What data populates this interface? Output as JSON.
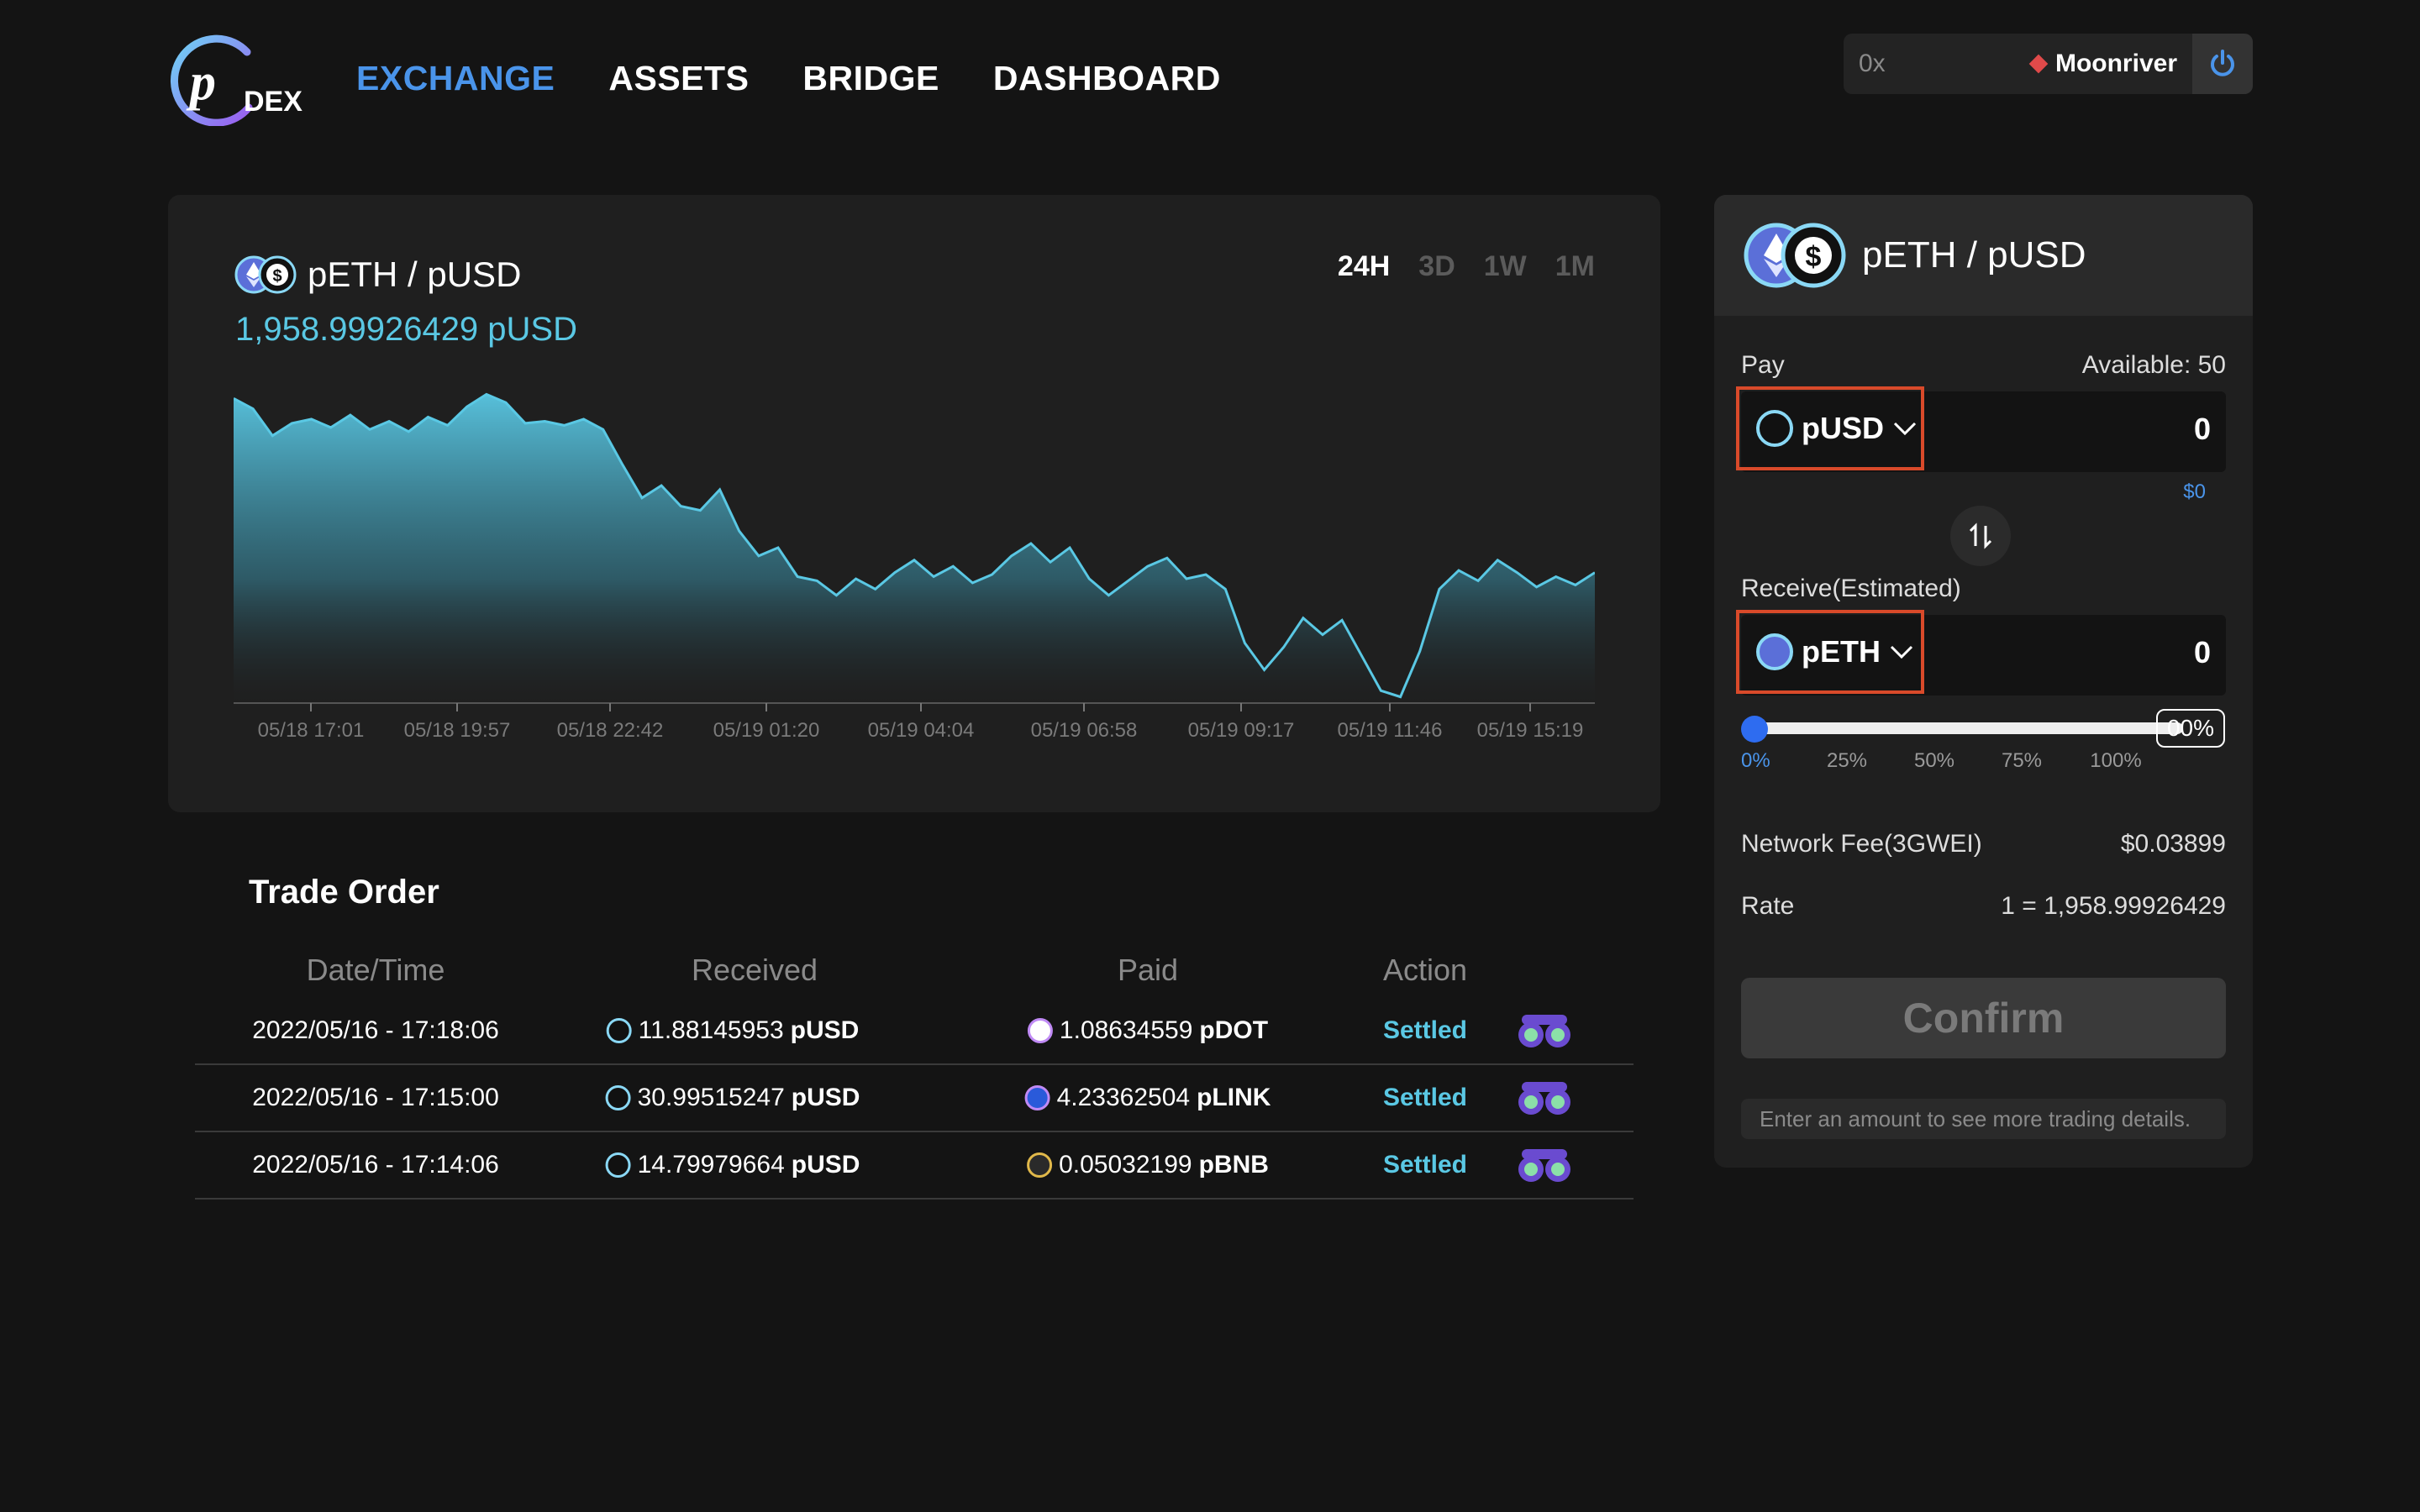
{
  "header": {
    "logo_text": "DEX",
    "nav": [
      "EXCHANGE",
      "ASSETS",
      "BRIDGE",
      "DASHBOARD"
    ],
    "active_nav": "EXCHANGE",
    "wallet": {
      "address_placeholder": "0x",
      "network": "Moonriver"
    }
  },
  "chart_card": {
    "pair": "pETH / pUSD",
    "price": "1,958.99926429 pUSD",
    "ranges": [
      "24H",
      "3D",
      "1W",
      "1M"
    ],
    "active_range": "24H"
  },
  "chart_data": {
    "type": "area",
    "x_tick_labels": [
      "05/18 17:01",
      "05/18 19:57",
      "05/18 22:42",
      "05/19 01:20",
      "05/19 04:04",
      "05/19 06:58",
      "05/19 09:17",
      "05/19 11:46",
      "05/19 15:19"
    ],
    "values": [
      1985.0,
      1984.5,
      1983.2,
      1983.8,
      1984.0,
      1983.6,
      1984.2,
      1983.5,
      1983.9,
      1983.4,
      1984.1,
      1983.7,
      1984.6,
      1985.2,
      1984.8,
      1983.8,
      1983.9,
      1983.7,
      1984.0,
      1983.5,
      1981.8,
      1980.2,
      1980.8,
      1979.8,
      1979.6,
      1980.6,
      1978.6,
      1977.4,
      1977.8,
      1976.4,
      1976.2,
      1975.5,
      1976.3,
      1975.8,
      1976.6,
      1977.2,
      1976.4,
      1976.9,
      1976.1,
      1976.5,
      1977.4,
      1978.0,
      1977.1,
      1977.8,
      1976.3,
      1975.5,
      1976.2,
      1976.9,
      1977.3,
      1976.3,
      1976.5,
      1975.8,
      1973.2,
      1971.9,
      1973.0,
      1974.4,
      1973.6,
      1974.3,
      1972.6,
      1970.9,
      1970.6,
      1972.8,
      1975.8,
      1976.7,
      1976.2,
      1977.2,
      1976.6,
      1975.9,
      1976.4,
      1976.0,
      1976.6
    ],
    "y_axis_labels": [],
    "grid": false,
    "color": "#5ac8e4"
  },
  "trade_order": {
    "title": "Trade Order",
    "columns": [
      "Date/Time",
      "Received",
      "Paid",
      "Action"
    ],
    "rows": [
      {
        "datetime": "2022/05/16 - 17:18:06",
        "received_amount": "11.88145953",
        "received_token": "pUSD",
        "paid_amount": "1.08634559",
        "paid_token": "pDOT",
        "action": "Settled"
      },
      {
        "datetime": "2022/05/16 - 17:15:00",
        "received_amount": "30.99515247",
        "received_token": "pUSD",
        "paid_amount": "4.23362504",
        "paid_token": "pLINK",
        "action": "Settled"
      },
      {
        "datetime": "2022/05/16 - 17:14:06",
        "received_amount": "14.79979664",
        "received_token": "pUSD",
        "paid_amount": "0.05032199",
        "paid_token": "pBNB",
        "action": "Settled"
      }
    ]
  },
  "swap": {
    "pair": "pETH / pUSD",
    "pay_label": "Pay",
    "available": "Available: 50",
    "pay_token": "pUSD",
    "pay_amount": "0",
    "pay_usd": "$0",
    "receive_label": "Receive(Estimated)",
    "receive_token": "pETH",
    "receive_amount": "0",
    "slider_value_label": "00%",
    "slider_value": 0,
    "slider_marks": [
      "0%",
      "25%",
      "50%",
      "75%",
      "100%"
    ],
    "network_fee_label": "Network Fee(3GWEI)",
    "network_fee_value": "$0.03899",
    "rate_label": "Rate",
    "rate_value": "1 = 1,958.99926429",
    "confirm_label": "Confirm",
    "hint": "Enter an amount to see more trading details."
  },
  "colors": {
    "accent": "#4a94ea",
    "positive": "#5ac8e4",
    "highlight_border": "#d94a2a",
    "background": "#141414",
    "card": "#1f1f1f"
  }
}
